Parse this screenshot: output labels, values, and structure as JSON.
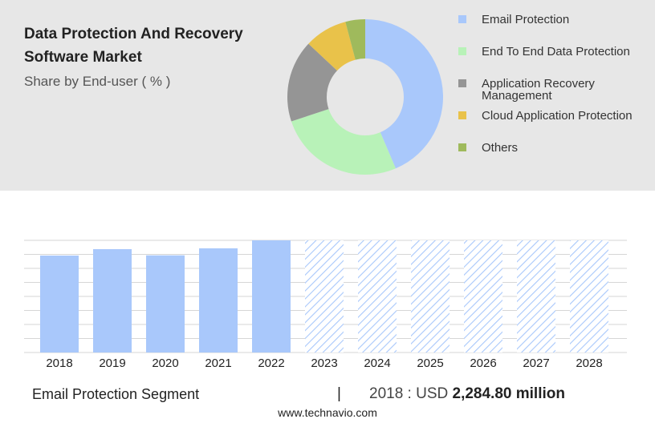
{
  "chart_data": [
    {
      "type": "pie",
      "title": "Data Protection And Recovery Software Market",
      "subtitle": "Share by End-user ( % )",
      "categories": [
        "Email Protection",
        "End To End Data Protection",
        "Application Recovery Management",
        "Cloud Application Protection",
        "Others"
      ],
      "values": [
        43.6,
        26.3,
        17.1,
        8.9,
        4.1
      ],
      "colors": [
        "#a9c8fb",
        "#b8f2b8",
        "#959595",
        "#e9c24a",
        "#9fba5c"
      ]
    },
    {
      "type": "bar",
      "categories": [
        "2018",
        "2019",
        "2020",
        "2021",
        "2022",
        "2023",
        "2024",
        "2025",
        "2026",
        "2027",
        "2028"
      ],
      "values": [
        2284.8,
        2436,
        2290,
        2455,
        2643,
        null,
        null,
        null,
        null,
        null,
        null
      ],
      "color": "#a9c8fb",
      "ylim": [
        0,
        2643
      ],
      "grid": true
    }
  ],
  "summary": {
    "segment": "Email Protection Segment",
    "period": "2018 : USD",
    "value": "2,284.80 million"
  },
  "footer": "www.technavio.com"
}
